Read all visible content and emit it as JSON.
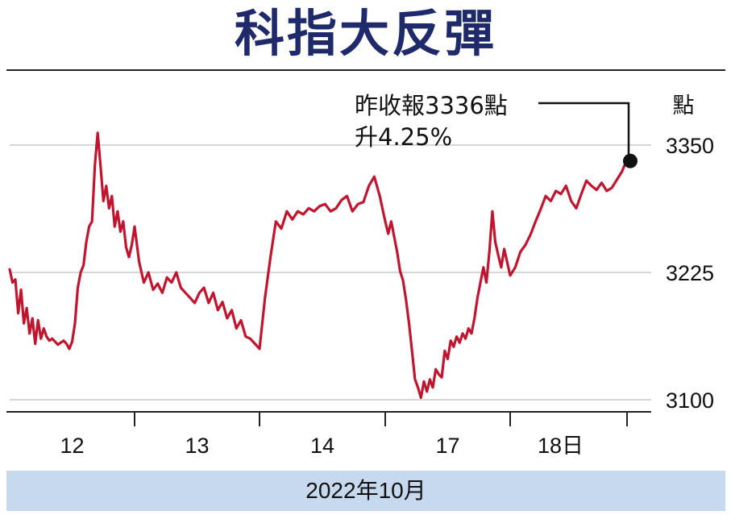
{
  "chart_data": {
    "type": "line",
    "title": "科指大反彈",
    "y_unit": "點",
    "ylim": [
      3100,
      3350
    ],
    "yticks": [
      3100,
      3225,
      3350
    ],
    "grid": true,
    "x_tick_labels": [
      "12",
      "13",
      "14",
      "17",
      "18日"
    ],
    "x_period_label": "2022年10月",
    "annotation": {
      "line1": "昨收報3336點",
      "line2": "升4.25%",
      "close": 3336
    },
    "series": [
      {
        "color": "#c0152e",
        "days": [
          "12",
          "13",
          "14",
          "17",
          "18日"
        ],
        "values_by_day": [
          [
            3228,
            3215,
            3218,
            3185,
            3208,
            3175,
            3190,
            3165,
            3180,
            3155,
            3178,
            3160,
            3170,
            3162,
            3158,
            3160,
            3157,
            3154,
            3156,
            3158,
            3155,
            3150,
            3157,
            3175,
            3210,
            3225,
            3232,
            3255,
            3270,
            3275,
            3330,
            3362,
            3330,
            3295,
            3310,
            3288,
            3300,
            3270,
            3285,
            3265,
            3275,
            3250,
            3240,
            3252,
            3270
          ],
          [
            3270,
            3235,
            3215,
            3225,
            3208,
            3214,
            3205,
            3220,
            3215,
            3225,
            3210,
            3205,
            3200,
            3195,
            3205,
            3210,
            3195,
            3205,
            3188,
            3196,
            3180,
            3188,
            3170,
            3178,
            3162,
            3160,
            3155,
            3150
          ],
          [
            3150,
            3200,
            3240,
            3275,
            3268,
            3285,
            3277,
            3285,
            3282,
            3288,
            3285,
            3290,
            3292,
            3285,
            3288,
            3296,
            3300,
            3285,
            3292,
            3294,
            3310,
            3319,
            3300,
            3275
          ],
          [
            3275,
            3263,
            3275,
            3260,
            3245,
            3226,
            3217,
            3198,
            3175,
            3148,
            3120,
            3112,
            3102,
            3118,
            3108,
            3120,
            3112,
            3130,
            3125,
            3122,
            3148,
            3140,
            3158,
            3152,
            3162,
            3156,
            3165,
            3160,
            3170,
            3165,
            3180,
            3200,
            3215,
            3230,
            3215,
            3245,
            3285,
            3255,
            3242,
            3230,
            3248,
            3235,
            3222
          ],
          [
            3222,
            3230,
            3245,
            3252,
            3262,
            3275,
            3287,
            3300,
            3295,
            3305,
            3302,
            3310,
            3295,
            3288,
            3302,
            3315,
            3310,
            3306,
            3313,
            3305,
            3308,
            3316,
            3324,
            3336
          ]
        ]
      }
    ]
  }
}
